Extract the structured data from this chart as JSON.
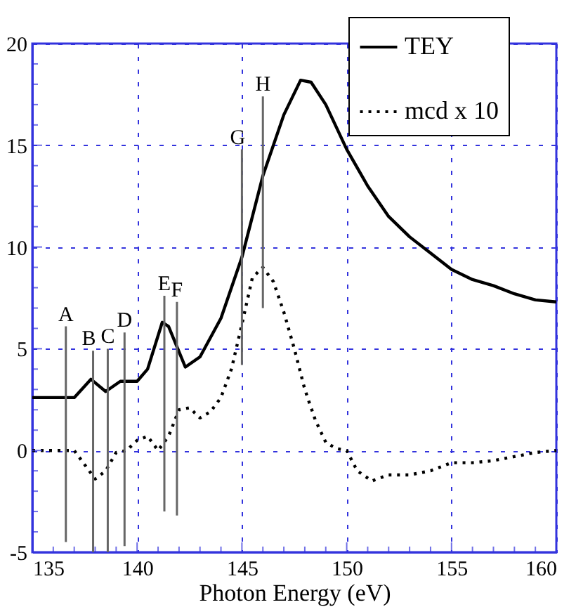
{
  "chart_data": {
    "type": "line",
    "xlabel": "Photon Energy (eV)",
    "xlim": [
      135,
      160
    ],
    "ylim": [
      -5,
      20
    ],
    "xticks": [
      135,
      {
        "value": 136,
        "label": null
      },
      {
        "value": 137,
        "label": null
      },
      {
        "value": 138,
        "label": null
      },
      {
        "value": 139,
        "label": null
      },
      140,
      {
        "value": 141,
        "label": null
      },
      {
        "value": 142,
        "label": null
      },
      {
        "value": 143,
        "label": null
      },
      {
        "value": 144,
        "label": null
      },
      145,
      {
        "value": 146,
        "label": null
      },
      {
        "value": 147,
        "label": null
      },
      {
        "value": 148,
        "label": null
      },
      {
        "value": 149,
        "label": null
      },
      150,
      {
        "value": 151,
        "label": null
      },
      {
        "value": 152,
        "label": null
      },
      {
        "value": 153,
        "label": null
      },
      {
        "value": 154,
        "label": null
      },
      155,
      {
        "value": 156,
        "label": null
      },
      {
        "value": 157,
        "label": null
      },
      {
        "value": 158,
        "label": null
      },
      {
        "value": 159,
        "label": null
      },
      160
    ],
    "yticks": [
      -5,
      {
        "value": -4,
        "label": null
      },
      {
        "value": -3,
        "label": null
      },
      {
        "value": -2,
        "label": null
      },
      {
        "value": -1,
        "label": null
      },
      0,
      {
        "value": 1,
        "label": null
      },
      {
        "value": 2,
        "label": null
      },
      {
        "value": 3,
        "label": null
      },
      {
        "value": 4,
        "label": null
      },
      5,
      {
        "value": 6,
        "label": null
      },
      {
        "value": 7,
        "label": null
      },
      {
        "value": 8,
        "label": null
      },
      {
        "value": 9,
        "label": null
      },
      10,
      {
        "value": 11,
        "label": null
      },
      {
        "value": 12,
        "label": null
      },
      {
        "value": 13,
        "label": null
      },
      {
        "value": 14,
        "label": null
      },
      15,
      {
        "value": 16,
        "label": null
      },
      {
        "value": 17,
        "label": null
      },
      {
        "value": 18,
        "label": null
      },
      {
        "value": 19,
        "label": null
      },
      20
    ],
    "grid": true,
    "legend": "top right",
    "series": [
      {
        "name": "TEY",
        "color": "#000000",
        "line_style": "solid",
        "x": [
          135,
          137,
          137.8,
          138.5,
          139.2,
          140,
          140.5,
          141.2,
          141.5,
          142.3,
          143,
          144,
          145,
          146,
          147,
          147.8,
          148.3,
          149,
          150,
          151,
          152,
          153,
          154,
          155,
          156,
          157,
          158,
          159,
          160
        ],
        "values": [
          2.6,
          2.6,
          3.5,
          2.9,
          3.4,
          3.4,
          4,
          6.3,
          6.1,
          4.1,
          4.6,
          6.5,
          9.5,
          13.5,
          16.5,
          18.2,
          18.1,
          17,
          14.8,
          13,
          11.5,
          10.5,
          9.7,
          8.9,
          8.4,
          8.1,
          7.7,
          7.4,
          7.3
        ]
      },
      {
        "name": "mcd x 10",
        "color": "#000000",
        "line_style": "dotted",
        "x": [
          135,
          137,
          137.5,
          138,
          138.5,
          139,
          139.5,
          140,
          140.5,
          141,
          141.5,
          142,
          142.5,
          143,
          143.5,
          144,
          144.5,
          145,
          145.5,
          146,
          146.5,
          147,
          147.5,
          148,
          148.5,
          149,
          149.5,
          150,
          150.5,
          151.2,
          152,
          153,
          154,
          155,
          156,
          157,
          158,
          159,
          160
        ],
        "values": [
          0,
          0,
          -0.7,
          -1.4,
          -1.0,
          -0.1,
          0,
          0.5,
          0.7,
          0,
          0.7,
          2.0,
          2.1,
          1.6,
          1.9,
          2.6,
          4,
          6.2,
          8.5,
          9.0,
          8.3,
          6.8,
          5,
          3,
          1.5,
          0.4,
          0.1,
          0,
          -1.0,
          -1.5,
          -1.2,
          -1.2,
          -1.0,
          -0.6,
          -0.6,
          -0.5,
          -0.3,
          -0.1,
          0
        ]
      },
      {
        "color": "#666666",
        "line_style": "solid",
        "x": [
          136.6,
          136.6
        ],
        "values": [
          -4.5,
          6.1
        ]
      },
      {
        "color": "#666666",
        "line_style": "solid",
        "x": [
          137.9,
          137.9
        ],
        "values": [
          -5,
          4.9
        ]
      },
      {
        "color": "#666666",
        "line_style": "solid",
        "x": [
          138.6,
          138.6
        ],
        "values": [
          -5,
          5.0
        ]
      },
      {
        "color": "#666666",
        "line_style": "solid",
        "x": [
          139.4,
          139.4
        ],
        "values": [
          -4.7,
          5.8
        ]
      },
      {
        "color": "#666666",
        "line_style": "solid",
        "x": [
          141.3,
          141.3
        ],
        "values": [
          -3.0,
          7.6
        ]
      },
      {
        "color": "#666666",
        "line_style": "solid",
        "x": [
          141.9,
          141.9
        ],
        "values": [
          -3.2,
          7.3
        ]
      },
      {
        "color": "#666666",
        "line_style": "solid",
        "x": [
          145,
          145
        ],
        "values": [
          4.2,
          14.8
        ]
      },
      {
        "color": "#666666",
        "line_style": "solid",
        "x": [
          146,
          146
        ],
        "values": [
          7.0,
          17.4
        ]
      }
    ],
    "annotations": [
      {
        "text": "A",
        "x": 136.6,
        "y": 6.1
      },
      {
        "text": "B",
        "x": 137.7,
        "y": 4.9
      },
      {
        "text": "C",
        "x": 138.6,
        "y": 5.0
      },
      {
        "text": "D",
        "x": 139.4,
        "y": 5.8
      },
      {
        "text": "E",
        "x": 141.3,
        "y": 7.6
      },
      {
        "text": "F",
        "x": 141.9,
        "y": 7.3
      },
      {
        "text": "G",
        "x": 144.8,
        "y": 14.8
      },
      {
        "text": "H",
        "x": 146,
        "y": 17.4
      }
    ]
  }
}
